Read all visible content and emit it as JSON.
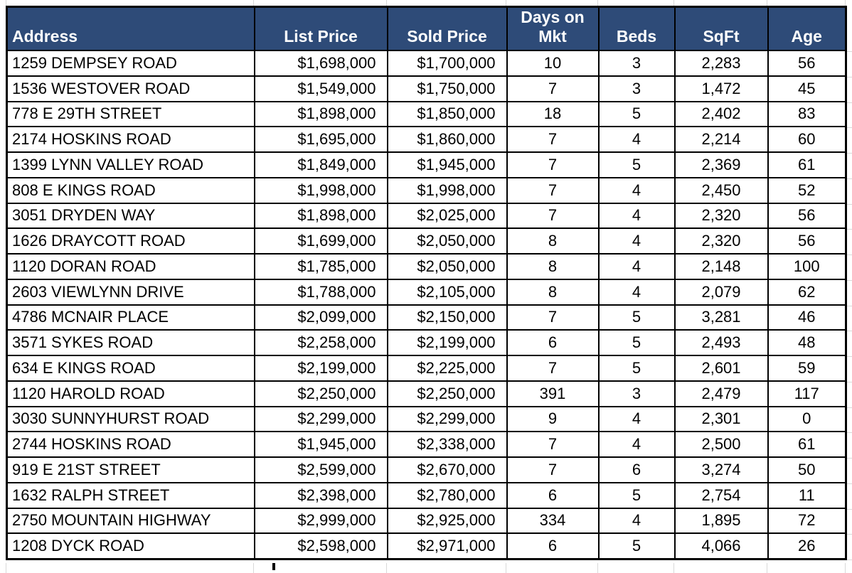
{
  "table": {
    "columns": [
      {
        "label": "Address"
      },
      {
        "label": "List Price"
      },
      {
        "label": "Sold Price"
      },
      {
        "label": "Days on Mkt"
      },
      {
        "label": "Beds"
      },
      {
        "label": "SqFt"
      },
      {
        "label": "Age"
      }
    ],
    "rows": [
      [
        "1259 DEMPSEY ROAD",
        "$1,698,000",
        "$1,700,000",
        "10",
        "3",
        "2,283",
        "56"
      ],
      [
        "1536 WESTOVER ROAD",
        "$1,549,000",
        "$1,750,000",
        "7",
        "3",
        "1,472",
        "45"
      ],
      [
        "778 E 29TH STREET",
        "$1,898,000",
        "$1,850,000",
        "18",
        "5",
        "2,402",
        "83"
      ],
      [
        "2174 HOSKINS ROAD",
        "$1,695,000",
        "$1,860,000",
        "7",
        "4",
        "2,214",
        "60"
      ],
      [
        "1399 LYNN VALLEY ROAD",
        "$1,849,000",
        "$1,945,000",
        "7",
        "5",
        "2,369",
        "61"
      ],
      [
        "808 E KINGS ROAD",
        "$1,998,000",
        "$1,998,000",
        "7",
        "4",
        "2,450",
        "52"
      ],
      [
        "3051 DRYDEN WAY",
        "$1,898,000",
        "$2,025,000",
        "7",
        "4",
        "2,320",
        "56"
      ],
      [
        "1626 DRAYCOTT ROAD",
        "$1,699,000",
        "$2,050,000",
        "8",
        "4",
        "2,320",
        "56"
      ],
      [
        "1120 DORAN ROAD",
        "$1,785,000",
        "$2,050,000",
        "8",
        "4",
        "2,148",
        "100"
      ],
      [
        "2603 VIEWLYNN DRIVE",
        "$1,788,000",
        "$2,105,000",
        "8",
        "4",
        "2,079",
        "62"
      ],
      [
        "4786 MCNAIR PLACE",
        "$2,099,000",
        "$2,150,000",
        "7",
        "5",
        "3,281",
        "46"
      ],
      [
        "3571 SYKES ROAD",
        "$2,258,000",
        "$2,199,000",
        "6",
        "5",
        "2,493",
        "48"
      ],
      [
        "634 E KINGS ROAD",
        "$2,199,000",
        "$2,225,000",
        "7",
        "5",
        "2,601",
        "59"
      ],
      [
        "1120 HAROLD ROAD",
        "$2,250,000",
        "$2,250,000",
        "391",
        "3",
        "2,479",
        "117"
      ],
      [
        "3030 SUNNYHURST ROAD",
        "$2,299,000",
        "$2,299,000",
        "9",
        "4",
        "2,301",
        "0"
      ],
      [
        "2744 HOSKINS ROAD",
        "$1,945,000",
        "$2,338,000",
        "7",
        "4",
        "2,500",
        "61"
      ],
      [
        "919 E 21ST STREET",
        "$2,599,000",
        "$2,670,000",
        "7",
        "6",
        "3,274",
        "50"
      ],
      [
        "1632 RALPH STREET",
        "$2,398,000",
        "$2,780,000",
        "6",
        "5",
        "2,754",
        "11"
      ],
      [
        "2750 MOUNTAIN HIGHWAY",
        "$2,999,000",
        "$2,925,000",
        "334",
        "4",
        "1,895",
        "72"
      ],
      [
        "1208 DYCK ROAD",
        "$2,598,000",
        "$2,971,000",
        "6",
        "5",
        "4,066",
        "26"
      ]
    ],
    "colors": {
      "header_bg": "#2E4B78",
      "header_text": "#FFFFFF",
      "body_text": "#000000",
      "grid": "#000000",
      "faint_grid": "#D9D9D9"
    }
  }
}
